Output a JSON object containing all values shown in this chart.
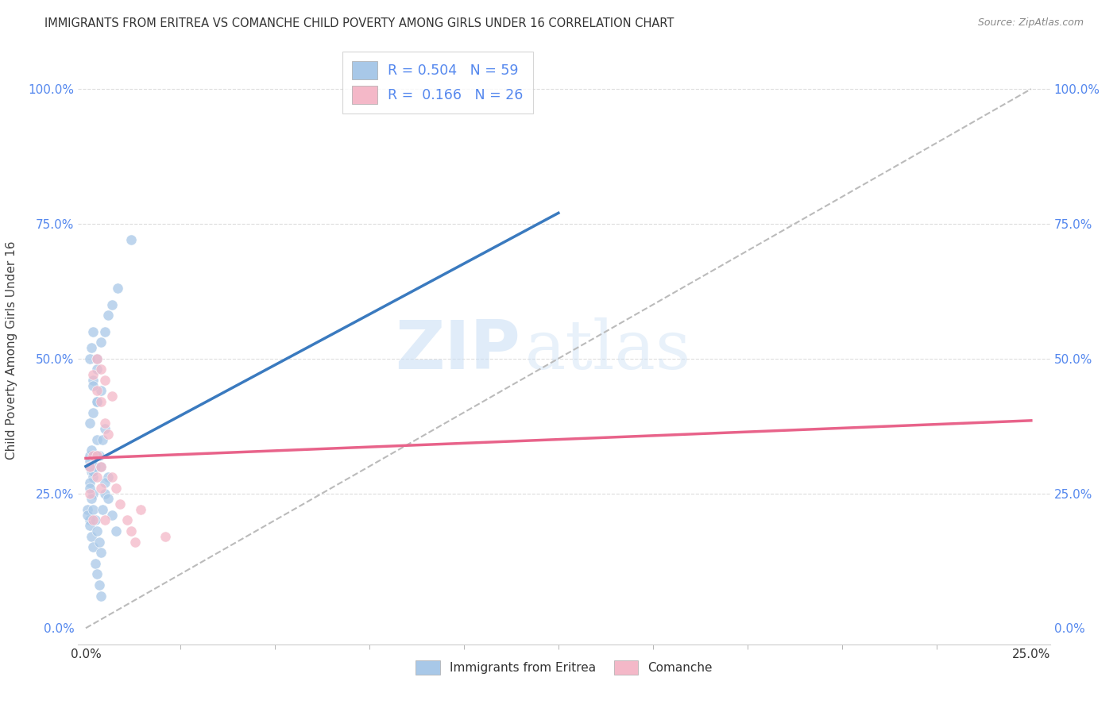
{
  "title": "IMMIGRANTS FROM ERITREA VS COMANCHE CHILD POVERTY AMONG GIRLS UNDER 16 CORRELATION CHART",
  "source": "Source: ZipAtlas.com",
  "ylabel": "Child Poverty Among Girls Under 16",
  "legend_label1": "Immigrants from Eritrea",
  "legend_label2": "Comanche",
  "r1": "0.504",
  "n1": "59",
  "r2": "0.166",
  "n2": "26",
  "watermark_zip": "ZIP",
  "watermark_atlas": "atlas",
  "blue_color": "#a8c8e8",
  "pink_color": "#f4b8c8",
  "blue_line_color": "#3a7abf",
  "pink_line_color": "#e8638a",
  "dashed_line_color": "#bbbbbb",
  "background_color": "#ffffff",
  "grid_color": "#dddddd",
  "tick_color": "#5588ee",
  "blue_x": [
    0.001,
    0.0015,
    0.002,
    0.001,
    0.0005,
    0.001,
    0.002,
    0.001,
    0.001,
    0.0015,
    0.002,
    0.003,
    0.001,
    0.002,
    0.003,
    0.004,
    0.002,
    0.001,
    0.0015,
    0.002,
    0.0025,
    0.003,
    0.0035,
    0.0005,
    0.001,
    0.0015,
    0.002,
    0.0025,
    0.003,
    0.0035,
    0.004,
    0.0045,
    0.005,
    0.001,
    0.0015,
    0.002,
    0.0025,
    0.003,
    0.0035,
    0.004,
    0.0045,
    0.005,
    0.006,
    0.001,
    0.002,
    0.003,
    0.004,
    0.005,
    0.006,
    0.007,
    0.0085,
    0.003,
    0.004,
    0.005,
    0.006,
    0.007,
    0.008,
    0.012,
    0.003
  ],
  "blue_y": [
    0.3,
    0.29,
    0.28,
    0.32,
    0.22,
    0.2,
    0.25,
    0.27,
    0.31,
    0.33,
    0.29,
    0.35,
    0.38,
    0.4,
    0.42,
    0.44,
    0.46,
    0.5,
    0.52,
    0.55,
    0.3,
    0.48,
    0.32,
    0.21,
    0.19,
    0.17,
    0.15,
    0.12,
    0.1,
    0.08,
    0.06,
    0.35,
    0.37,
    0.26,
    0.24,
    0.22,
    0.2,
    0.18,
    0.16,
    0.14,
    0.22,
    0.25,
    0.28,
    0.3,
    0.45,
    0.5,
    0.53,
    0.55,
    0.58,
    0.6,
    0.63,
    0.32,
    0.3,
    0.27,
    0.24,
    0.21,
    0.18,
    0.72,
    0.42
  ],
  "pink_x": [
    0.001,
    0.002,
    0.003,
    0.004,
    0.002,
    0.003,
    0.004,
    0.005,
    0.003,
    0.004,
    0.005,
    0.006,
    0.007,
    0.003,
    0.004,
    0.005,
    0.007,
    0.008,
    0.009,
    0.011,
    0.012,
    0.013,
    0.0145,
    0.021,
    0.001,
    0.002
  ],
  "pink_y": [
    0.3,
    0.32,
    0.28,
    0.26,
    0.47,
    0.5,
    0.48,
    0.46,
    0.44,
    0.42,
    0.38,
    0.36,
    0.43,
    0.32,
    0.3,
    0.2,
    0.28,
    0.26,
    0.23,
    0.2,
    0.18,
    0.16,
    0.22,
    0.17,
    0.25,
    0.2
  ],
  "xlim": [
    0.0,
    0.25
  ],
  "ylim": [
    0.0,
    1.0
  ],
  "blue_line_x0": 0.0,
  "blue_line_y0": 0.3,
  "blue_line_x1": 0.125,
  "blue_line_y1": 0.77,
  "pink_line_x0": 0.0,
  "pink_line_y0": 0.315,
  "pink_line_x1": 0.25,
  "pink_line_y1": 0.385
}
